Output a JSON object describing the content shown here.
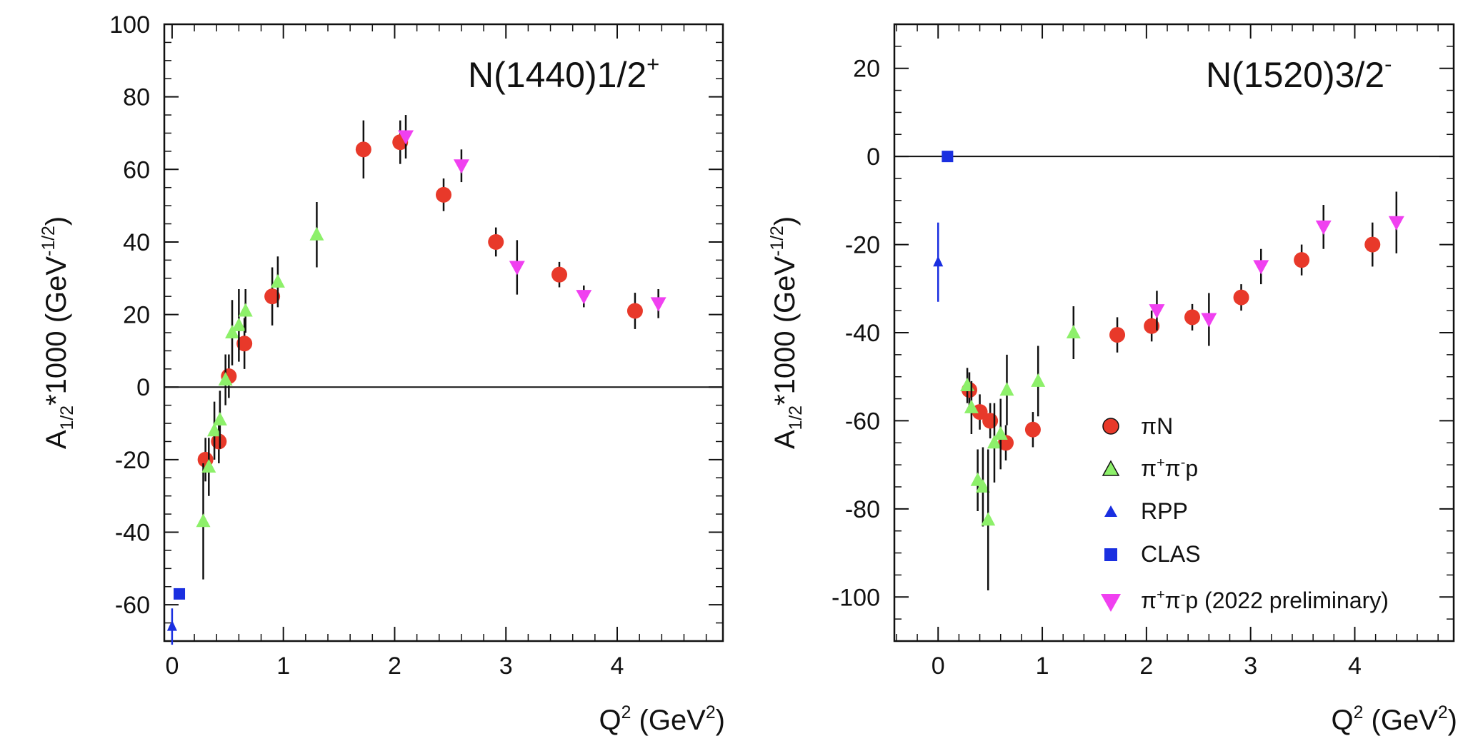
{
  "colors": {
    "piN": "#e8392a",
    "pipip": "#8df06a",
    "rpp": "#1a2fe0",
    "clas": "#1a2fe0",
    "prelim": "#f040f0",
    "axis": "#111111"
  },
  "legend": [
    {
      "key": "piN",
      "label_main": "πN",
      "label_sup1": "",
      "label_mid": "",
      "label_sup2": "",
      "label_tail": ""
    },
    {
      "key": "pipip",
      "label_main": "π",
      "label_sup1": "+",
      "label_mid": "π",
      "label_sup2": "-",
      "label_tail": "p"
    },
    {
      "key": "rpp",
      "label_main": "RPP",
      "label_sup1": "",
      "label_mid": "",
      "label_sup2": "",
      "label_tail": ""
    },
    {
      "key": "clas",
      "label_main": "CLAS",
      "label_sup1": "",
      "label_mid": "",
      "label_sup2": "",
      "label_tail": ""
    },
    {
      "key": "prelim",
      "label_main": "π",
      "label_sup1": "+",
      "label_mid": "π",
      "label_sup2": "-",
      "label_tail": "p (2022 preliminary)"
    }
  ],
  "chart_data": [
    {
      "type": "scatter",
      "title": "N(1440)1/2",
      "title_sup": "+",
      "xlabel_main": "Q",
      "xlabel_sup": "2",
      "xlabel_unit": " (GeV",
      "xlabel_unit_sup": "2",
      "xlabel_close": ")",
      "ylabel_main": "A",
      "ylabel_sub": "1/2",
      "ylabel_mid": "*1000 (GeV",
      "ylabel_sup": "-1/2",
      "ylabel_close": ")",
      "xlim": [
        -0.07,
        4.95
      ],
      "ylim": [
        -70,
        100
      ],
      "xticks": [
        0,
        1,
        2,
        3,
        4
      ],
      "yticks": [
        -60,
        -40,
        -20,
        0,
        20,
        40,
        60,
        80,
        100
      ],
      "series": [
        {
          "name": "piN",
          "marker": "circle",
          "points": [
            {
              "x": 0.3,
              "y": -20,
              "err": 6
            },
            {
              "x": 0.42,
              "y": -15,
              "err": 6
            },
            {
              "x": 0.51,
              "y": 3,
              "err": 6
            },
            {
              "x": 0.65,
              "y": 12,
              "err": 7
            },
            {
              "x": 0.9,
              "y": 25,
              "err": 8
            },
            {
              "x": 1.72,
              "y": 65.5,
              "err": 8
            },
            {
              "x": 2.05,
              "y": 67.5,
              "err": 6
            },
            {
              "x": 2.44,
              "y": 53,
              "err": 4.5
            },
            {
              "x": 2.91,
              "y": 40,
              "err": 4
            },
            {
              "x": 3.48,
              "y": 31,
              "err": 3.5
            },
            {
              "x": 4.16,
              "y": 21,
              "err": 5
            }
          ]
        },
        {
          "name": "pipip",
          "marker": "triangle-up",
          "points": [
            {
              "x": 0.28,
              "y": -37,
              "err": 16
            },
            {
              "x": 0.33,
              "y": -22,
              "err": 8
            },
            {
              "x": 0.38,
              "y": -12,
              "err": 8
            },
            {
              "x": 0.43,
              "y": -9,
              "err": 8
            },
            {
              "x": 0.48,
              "y": 2,
              "err": 7
            },
            {
              "x": 0.54,
              "y": 15,
              "err": 9
            },
            {
              "x": 0.6,
              "y": 17,
              "err": 10
            },
            {
              "x": 0.66,
              "y": 21,
              "err": 6
            },
            {
              "x": 0.95,
              "y": 29,
              "err": 7
            },
            {
              "x": 1.3,
              "y": 42,
              "err": 9
            }
          ]
        },
        {
          "name": "rpp",
          "marker": "triangle-up-small",
          "points": [
            {
              "x": 0.0,
              "y": -66,
              "err": 5
            }
          ]
        },
        {
          "name": "clas",
          "marker": "square",
          "points": [
            {
              "x": 0.065,
              "y": -57,
              "err": 0
            }
          ]
        },
        {
          "name": "prelim",
          "marker": "triangle-down",
          "points": [
            {
              "x": 2.1,
              "y": 69,
              "err": 6
            },
            {
              "x": 2.6,
              "y": 61,
              "err": 4.5
            },
            {
              "x": 3.1,
              "y": 33,
              "err": 7.5
            },
            {
              "x": 3.7,
              "y": 25,
              "err": 3
            },
            {
              "x": 4.37,
              "y": 23,
              "err": 4
            }
          ]
        }
      ]
    },
    {
      "type": "scatter",
      "title": "N(1520)3/2",
      "title_sup": "-",
      "xlabel_main": "Q",
      "xlabel_sup": "2",
      "xlabel_unit": " (GeV",
      "xlabel_unit_sup": "2",
      "xlabel_close": ")",
      "ylabel_main": "A",
      "ylabel_sub": "1/2",
      "ylabel_mid": "*1000 (GeV",
      "ylabel_sup": "-1/2",
      "ylabel_close": ")",
      "xlim": [
        -0.42,
        4.95
      ],
      "ylim": [
        -110,
        30
      ],
      "xticks": [
        0,
        1,
        2,
        3,
        4
      ],
      "yticks": [
        -100,
        -80,
        -60,
        -40,
        -20,
        0,
        20
      ],
      "series": [
        {
          "name": "piN",
          "marker": "circle",
          "points": [
            {
              "x": 0.3,
              "y": -53,
              "err": 4
            },
            {
              "x": 0.4,
              "y": -58,
              "err": 4
            },
            {
              "x": 0.5,
              "y": -60,
              "err": 4
            },
            {
              "x": 0.65,
              "y": -65,
              "err": 4
            },
            {
              "x": 0.91,
              "y": -62,
              "err": 4
            },
            {
              "x": 1.72,
              "y": -40.5,
              "err": 4
            },
            {
              "x": 2.05,
              "y": -38.5,
              "err": 3.5
            },
            {
              "x": 2.44,
              "y": -36.5,
              "err": 3
            },
            {
              "x": 2.91,
              "y": -32,
              "err": 3
            },
            {
              "x": 3.49,
              "y": -23.5,
              "err": 3.5
            },
            {
              "x": 4.17,
              "y": -20,
              "err": 5
            }
          ]
        },
        {
          "name": "pipip",
          "marker": "triangle-up",
          "points": [
            {
              "x": 0.28,
              "y": -52,
              "err": 4
            },
            {
              "x": 0.32,
              "y": -57,
              "err": 6
            },
            {
              "x": 0.38,
              "y": -73.5,
              "err": 7
            },
            {
              "x": 0.43,
              "y": -75,
              "err": 9
            },
            {
              "x": 0.48,
              "y": -82.5,
              "err": 16
            },
            {
              "x": 0.54,
              "y": -65,
              "err": 9
            },
            {
              "x": 0.6,
              "y": -63,
              "err": 8
            },
            {
              "x": 0.66,
              "y": -53,
              "err": 8
            },
            {
              "x": 0.96,
              "y": -51,
              "err": 8
            },
            {
              "x": 1.3,
              "y": -40,
              "err": 6
            }
          ]
        },
        {
          "name": "rpp",
          "marker": "triangle-up-small",
          "points": [
            {
              "x": 0.0,
              "y": -24,
              "err": 9
            }
          ]
        },
        {
          "name": "clas",
          "marker": "square",
          "points": [
            {
              "x": 0.09,
              "y": 0,
              "err": 0
            }
          ]
        },
        {
          "name": "prelim",
          "marker": "triangle-down",
          "points": [
            {
              "x": 2.1,
              "y": -35,
              "err": 4.5
            },
            {
              "x": 2.6,
              "y": -37,
              "err": 6
            },
            {
              "x": 3.1,
              "y": -25,
              "err": 4
            },
            {
              "x": 3.7,
              "y": -16,
              "err": 5
            },
            {
              "x": 4.4,
              "y": -15,
              "err": 7
            }
          ]
        }
      ]
    }
  ]
}
